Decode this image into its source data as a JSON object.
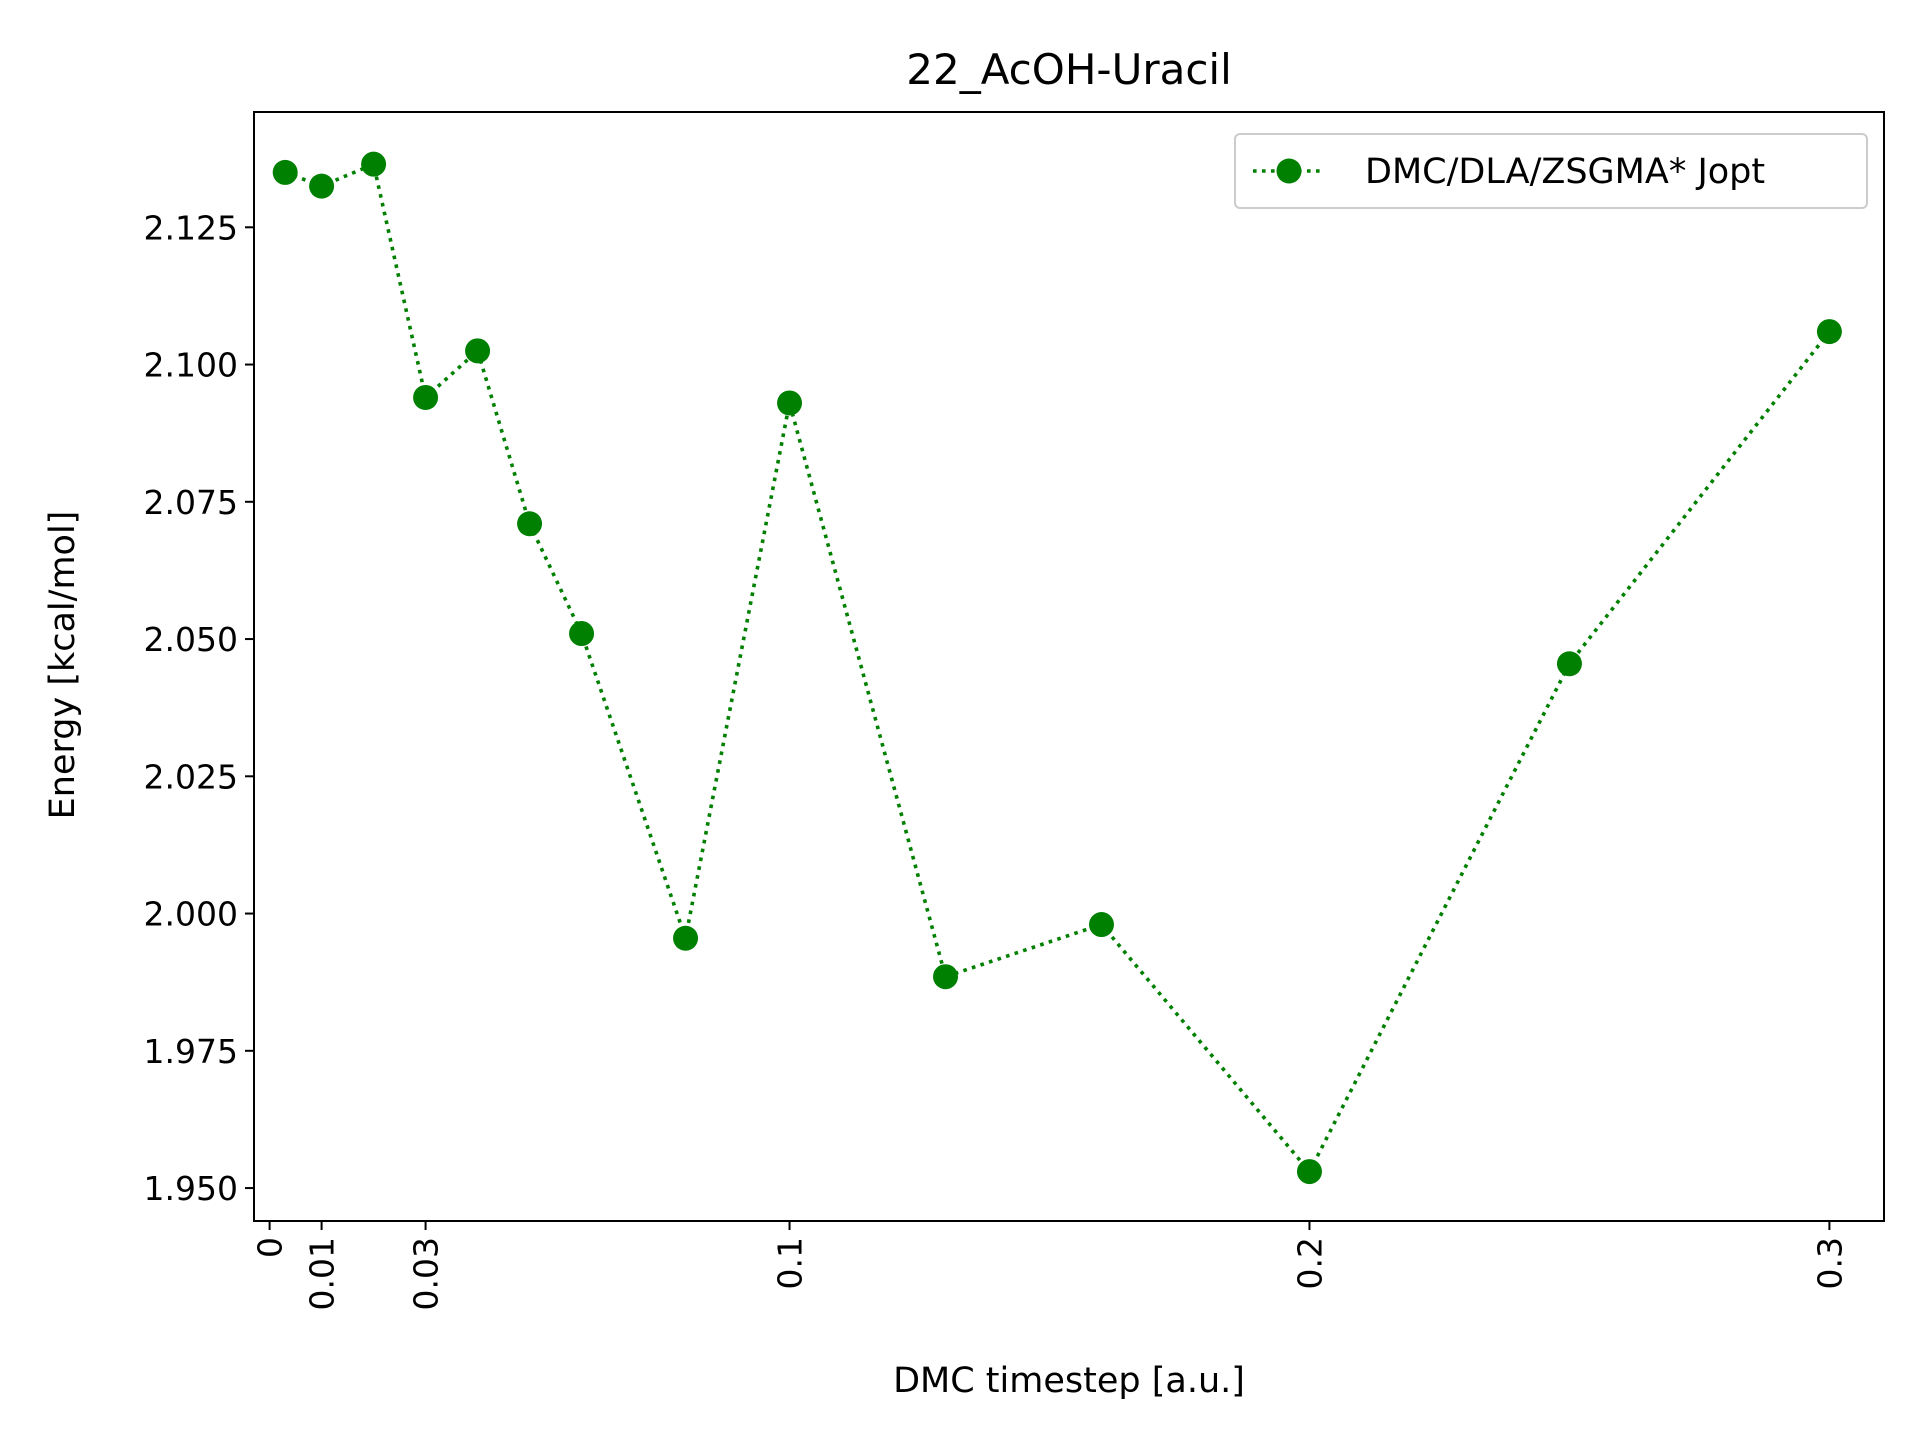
{
  "chart_data": {
    "type": "line",
    "title": "22_AcOH-Uracil",
    "xlabel": "DMC timestep [a.u.]",
    "ylabel": "Energy [kcal/mol]",
    "xlim": [
      -0.003,
      0.3105
    ],
    "ylim": [
      1.944,
      2.146
    ],
    "xticks": [
      0,
      0.01,
      0.03,
      0.1,
      0.2,
      0.3
    ],
    "xtick_labels": [
      "0",
      "0.01",
      "0.03",
      "0.1",
      "0.2",
      "0.3"
    ],
    "yticks": [
      1.95,
      1.975,
      2.0,
      2.025,
      2.05,
      2.075,
      2.1,
      2.125
    ],
    "ytick_labels": [
      "1.950",
      "1.975",
      "2.000",
      "2.025",
      "2.050",
      "2.075",
      "2.100",
      "2.125"
    ],
    "grid": false,
    "legend_position": "top-right",
    "series": [
      {
        "name": "DMC/DLA/ZSGMA* Jopt",
        "color": "#008000",
        "line_style": "dotted",
        "marker": "circle",
        "x": [
          0.003,
          0.01,
          0.02,
          0.03,
          0.04,
          0.05,
          0.06,
          0.08,
          0.1,
          0.13,
          0.16,
          0.2,
          0.25,
          0.3
        ],
        "y": [
          2.135,
          2.1325,
          2.1365,
          2.094,
          2.1025,
          2.071,
          2.051,
          1.9955,
          2.093,
          1.9885,
          1.998,
          1.953,
          2.0455,
          2.106
        ]
      }
    ]
  }
}
